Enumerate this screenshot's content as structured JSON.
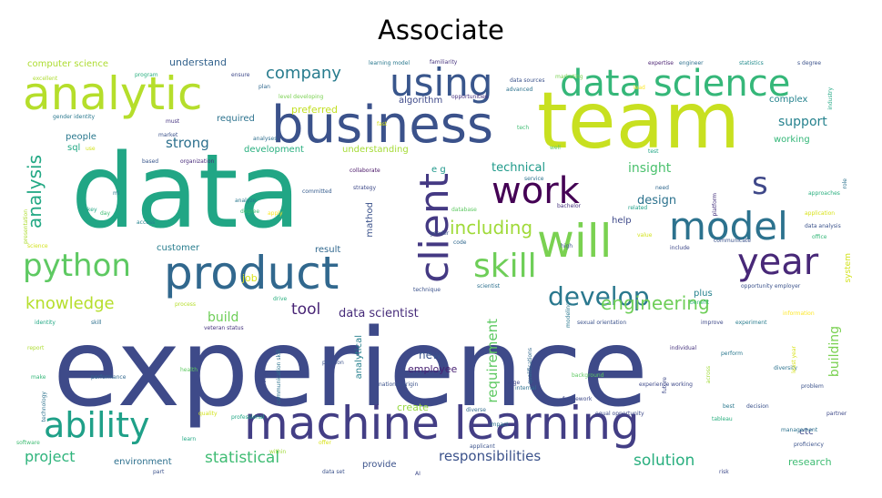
{
  "title": "Associate",
  "words": [
    {
      "text": "experience",
      "color": "#3e4a89"
    },
    {
      "text": "data",
      "color": "#21a685"
    },
    {
      "text": "team",
      "color": "#c8e020"
    },
    {
      "text": "business",
      "color": "#3b528b"
    },
    {
      "text": "machine learning",
      "color": "#433e85"
    },
    {
      "text": "product",
      "color": "#31688e"
    },
    {
      "text": "analytic",
      "color": "#b5de2b"
    },
    {
      "text": "data science",
      "color": "#35b779"
    },
    {
      "text": "will",
      "color": "#7ad151"
    },
    {
      "text": "work",
      "color": "#440154"
    },
    {
      "text": "model",
      "color": "#2c728e"
    },
    {
      "text": "year",
      "color": "#482878"
    },
    {
      "text": "using",
      "color": "#39568c"
    },
    {
      "text": "ability",
      "color": "#1fa088"
    },
    {
      "text": "python",
      "color": "#5ec962"
    },
    {
      "text": "client",
      "color": "#443983"
    },
    {
      "text": "skill",
      "color": "#6ece58"
    },
    {
      "text": "s",
      "color": "#3f4889"
    },
    {
      "text": "develop",
      "color": "#2a788e"
    },
    {
      "text": "engineering",
      "color": "#6ece58"
    },
    {
      "text": "knowledge",
      "color": "#b5de2b"
    },
    {
      "text": "including",
      "color": "#a0da39"
    },
    {
      "text": "company",
      "color": "#287c8e"
    },
    {
      "text": "analysis",
      "color": "#22a884"
    },
    {
      "text": "project",
      "color": "#2fb47c"
    },
    {
      "text": "statistical",
      "color": "#3fbc73"
    },
    {
      "text": "responsibilities",
      "color": "#3b528b"
    },
    {
      "text": "solution",
      "color": "#29af7f"
    },
    {
      "text": "tool",
      "color": "#482475"
    },
    {
      "text": "data scientist",
      "color": "#472c7a"
    },
    {
      "text": "requirement",
      "color": "#5ec962"
    },
    {
      "text": "support",
      "color": "#26828e"
    },
    {
      "text": "strong",
      "color": "#2d708e"
    },
    {
      "text": "technical",
      "color": "#1f9a8a"
    },
    {
      "text": "insight",
      "color": "#4ac16d"
    },
    {
      "text": "design",
      "color": "#2c728e"
    },
    {
      "text": "build",
      "color": "#6ece58"
    },
    {
      "text": "computer science",
      "color": "#addc30"
    },
    {
      "text": "understand",
      "color": "#33638d"
    },
    {
      "text": "algorithm",
      "color": "#3e4989"
    },
    {
      "text": "preferred",
      "color": "#c2df23"
    },
    {
      "text": "required",
      "color": "#2c728e"
    },
    {
      "text": "complex",
      "color": "#25838e"
    },
    {
      "text": "working",
      "color": "#35b779"
    },
    {
      "text": "people",
      "color": "#2a788e"
    },
    {
      "text": "sql",
      "color": "#22a884"
    },
    {
      "text": "development",
      "color": "#29af7f"
    },
    {
      "text": "understanding",
      "color": "#a5db36"
    },
    {
      "text": "e g",
      "color": "#1f988b"
    },
    {
      "text": "customer",
      "color": "#287d8e"
    },
    {
      "text": "job",
      "color": "#d8e219"
    },
    {
      "text": "result",
      "color": "#31688e"
    },
    {
      "text": "help",
      "color": "#3e4989"
    },
    {
      "text": "plus",
      "color": "#26828e"
    },
    {
      "text": "new",
      "color": "#3a548c"
    },
    {
      "text": "employee",
      "color": "#482173"
    },
    {
      "text": "analytical",
      "color": "#27808e"
    },
    {
      "text": "create",
      "color": "#95d840"
    },
    {
      "text": "etc",
      "color": "#3e4989"
    },
    {
      "text": "environment",
      "color": "#2d708e"
    },
    {
      "text": "provide",
      "color": "#3b528b"
    },
    {
      "text": "research",
      "color": "#3fbc73"
    },
    {
      "text": "building",
      "color": "#7ad151"
    },
    {
      "text": "system",
      "color": "#d2e21b"
    },
    {
      "text": "mathod",
      "color": "#3b528b"
    },
    {
      "text": "learning model",
      "color": "#2a788e"
    },
    {
      "text": "familiarity",
      "color": "#46337e"
    },
    {
      "text": "statistics",
      "color": "#228c8d"
    },
    {
      "text": "s degree",
      "color": "#3b528b"
    },
    {
      "text": "expertise",
      "color": "#481f70"
    },
    {
      "text": "engineer",
      "color": "#2d708e"
    },
    {
      "text": "excellent",
      "color": "#addc30"
    },
    {
      "text": "program",
      "color": "#29af7f"
    },
    {
      "text": "ensure",
      "color": "#3e4989"
    },
    {
      "text": "plan",
      "color": "#31688e"
    },
    {
      "text": "level developing",
      "color": "#7ad151"
    },
    {
      "text": "opportunities",
      "color": "#46307e"
    },
    {
      "text": "advanced",
      "color": "#2c728e"
    },
    {
      "text": "lead",
      "color": "#fde725"
    },
    {
      "text": "gender identity",
      "color": "#2a788e"
    },
    {
      "text": "must",
      "color": "#463480"
    },
    {
      "text": "analyses",
      "color": "#2e6e8e"
    },
    {
      "text": "market",
      "color": "#3b528b"
    },
    {
      "text": "use",
      "color": "#d2e21b"
    },
    {
      "text": "based",
      "color": "#39568c"
    },
    {
      "text": "organization",
      "color": "#472a7a"
    },
    {
      "text": "collaborate",
      "color": "#471365"
    },
    {
      "text": "committed",
      "color": "#365c8d"
    },
    {
      "text": "strategy",
      "color": "#3e4a89"
    },
    {
      "text": "access",
      "color": "#25838e"
    },
    {
      "text": "analyze",
      "color": "#2a788e"
    },
    {
      "text": "degree",
      "color": "#3fbc73"
    },
    {
      "text": "apply",
      "color": "#fde725"
    },
    {
      "text": "database",
      "color": "#5ec962"
    },
    {
      "text": "related",
      "color": "#1fa088"
    },
    {
      "text": "need",
      "color": "#31688e"
    },
    {
      "text": "platform",
      "color": "#46337e"
    },
    {
      "text": "application",
      "color": "#d8e219"
    },
    {
      "text": "data analysis",
      "color": "#3b528b"
    },
    {
      "text": "office",
      "color": "#35b779"
    },
    {
      "text": "value",
      "color": "#d2e21b"
    },
    {
      "text": "include",
      "color": "#3e4989"
    },
    {
      "text": "opportunity employer",
      "color": "#3b528b"
    },
    {
      "text": "information",
      "color": "#fde725"
    },
    {
      "text": "experiment",
      "color": "#287c8e"
    },
    {
      "text": "improve",
      "color": "#3e4989"
    },
    {
      "text": "sexual orientation",
      "color": "#3b528b"
    },
    {
      "text": "veteran status",
      "color": "#46337e"
    },
    {
      "text": "process",
      "color": "#b5de2b"
    },
    {
      "text": "drive",
      "color": "#29af7f"
    },
    {
      "text": "identity",
      "color": "#22a884"
    },
    {
      "text": "skill",
      "color": "#2d708e"
    },
    {
      "text": "communication skill",
      "color": "#2c728e"
    },
    {
      "text": "technique",
      "color": "#3b528b"
    },
    {
      "text": "scientist",
      "color": "#2d708e"
    },
    {
      "text": "qualifications",
      "color": "#31688e"
    },
    {
      "text": "report",
      "color": "#addc30"
    },
    {
      "text": "make",
      "color": "#35b779"
    },
    {
      "text": "performance",
      "color": "#31688e"
    },
    {
      "text": "health",
      "color": "#5ec962"
    },
    {
      "text": "race color",
      "color": "#3e4989"
    },
    {
      "text": "position",
      "color": "#3b528b"
    },
    {
      "text": "national origin",
      "color": "#3b528b"
    },
    {
      "text": "individual",
      "color": "#46337e"
    },
    {
      "text": "perform",
      "color": "#2a788e"
    },
    {
      "text": "across",
      "color": "#a0da39"
    },
    {
      "text": "diversity",
      "color": "#2c728e"
    },
    {
      "text": "quality",
      "color": "#d2e21b"
    },
    {
      "text": "professional",
      "color": "#21a685"
    },
    {
      "text": "offer",
      "color": "#d8e219"
    },
    {
      "text": "framework",
      "color": "#3e4989"
    },
    {
      "text": "equal opportunity",
      "color": "#3e4989"
    },
    {
      "text": "diverse",
      "color": "#31688e"
    },
    {
      "text": "best",
      "color": "#2a788e"
    },
    {
      "text": "decision",
      "color": "#3b528b"
    },
    {
      "text": "management",
      "color": "#2c728e"
    },
    {
      "text": "proficiency",
      "color": "#3b528b"
    },
    {
      "text": "learn",
      "color": "#22a884"
    },
    {
      "text": "applicant",
      "color": "#3b528b"
    },
    {
      "text": "impact",
      "color": "#2c728e"
    },
    {
      "text": "within",
      "color": "#a0da39"
    },
    {
      "text": "data set",
      "color": "#3b528b"
    },
    {
      "text": "risk",
      "color": "#3e4989"
    },
    {
      "text": "technology",
      "color": "#2c728e"
    },
    {
      "text": "large",
      "color": "#3e4989"
    },
    {
      "text": "code",
      "color": "#31688e"
    },
    {
      "text": "high",
      "color": "#3b528b"
    },
    {
      "text": "service",
      "color": "#2c728e"
    },
    {
      "text": "communicate",
      "color": "#3b528b"
    },
    {
      "text": "approaches",
      "color": "#29af7f"
    },
    {
      "text": "presentation",
      "color": "#addc30"
    },
    {
      "text": "software",
      "color": "#3fbc73"
    },
    {
      "text": "science",
      "color": "#d2e21b"
    },
    {
      "text": "marketing",
      "color": "#7ad151"
    },
    {
      "text": "bachelor",
      "color": "#46337e"
    },
    {
      "text": "benefit",
      "color": "#35b779"
    },
    {
      "text": "modeling",
      "color": "#2a788e"
    },
    {
      "text": "partner",
      "color": "#3e4989"
    },
    {
      "text": "data sources",
      "color": "#3b528b"
    },
    {
      "text": "industry",
      "color": "#22a884"
    },
    {
      "text": "role",
      "color": "#2c728e"
    },
    {
      "text": "day",
      "color": "#3fbc73"
    },
    {
      "text": "internal",
      "color": "#2d708e"
    },
    {
      "text": "background",
      "color": "#5ec962"
    },
    {
      "text": "future",
      "color": "#3e4989"
    },
    {
      "text": "experience working",
      "color": "#3e4989"
    },
    {
      "text": "problem",
      "color": "#3b528b"
    },
    {
      "text": "tableau",
      "color": "#29af7f"
    },
    {
      "text": "least year",
      "color": "#d8e219"
    },
    {
      "text": "gender",
      "color": "#3b528b"
    },
    {
      "text": "ml",
      "color": "#2a788e"
    },
    {
      "text": "AI",
      "color": "#3e4989"
    },
    {
      "text": "test",
      "color": "#21a685"
    },
    {
      "text": "part",
      "color": "#3b528b"
    },
    {
      "text": "well",
      "color": "#5ec962"
    },
    {
      "text": "aws",
      "color": "#3e4989"
    },
    {
      "text": "key",
      "color": "#22a884"
    },
    {
      "text": "fast",
      "color": "#d8e219"
    },
    {
      "text": "tech",
      "color": "#3fbc73"
    }
  ]
}
